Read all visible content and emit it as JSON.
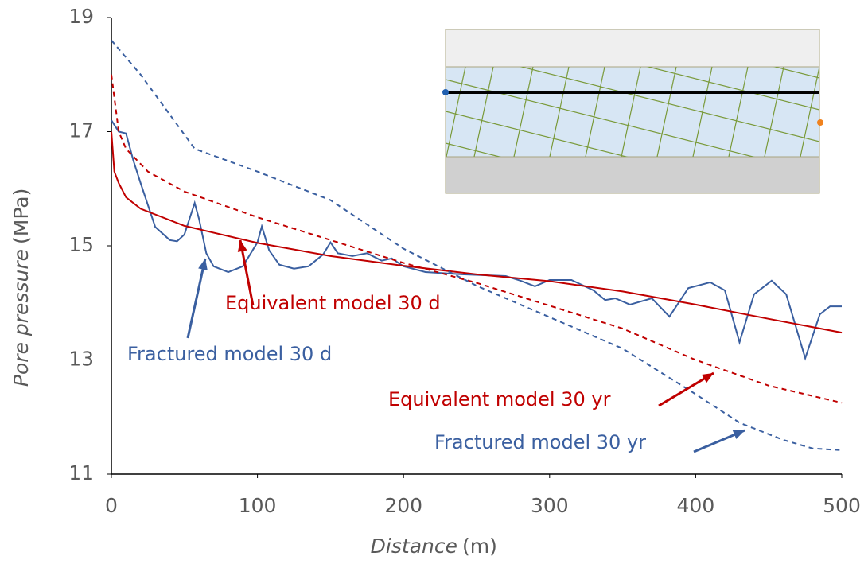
{
  "chart_data": {
    "type": "line",
    "xlabel": "Distance",
    "xlabel_unit": "(m)",
    "ylabel": "Pore pressure",
    "ylabel_unit": "(MPa)",
    "xlim": [
      0,
      500
    ],
    "xticks": [
      0,
      100,
      200,
      300,
      400,
      500
    ],
    "ylim": [
      11,
      19
    ],
    "yticks": [
      11,
      13,
      15,
      17,
      19
    ],
    "grid": false,
    "series": [
      {
        "name": "Fractured model 30 d",
        "color": "#3a5fa0",
        "dashed": false,
        "x": [
          0,
          5,
          10,
          15,
          20,
          30,
          40,
          45,
          50,
          57,
          60,
          65,
          70,
          80,
          90,
          100,
          103,
          108,
          115,
          125,
          135,
          145,
          150,
          155,
          165,
          175,
          185,
          192,
          200,
          215,
          240,
          270,
          280,
          290,
          300,
          315,
          330,
          338,
          345,
          355,
          370,
          382,
          395,
          410,
          420,
          430,
          440,
          452,
          462,
          475,
          485,
          492,
          500
        ],
        "values": [
          17.2,
          17.0,
          16.97,
          16.5,
          16.1,
          15.33,
          15.1,
          15.08,
          15.2,
          15.75,
          15.47,
          14.87,
          14.64,
          14.54,
          14.64,
          15.06,
          15.34,
          14.92,
          14.67,
          14.6,
          14.64,
          14.85,
          15.06,
          14.87,
          14.82,
          14.87,
          14.74,
          14.78,
          14.64,
          14.54,
          14.5,
          14.47,
          14.39,
          14.29,
          14.4,
          14.4,
          14.22,
          14.05,
          14.08,
          13.97,
          14.08,
          13.76,
          14.26,
          14.36,
          14.22,
          13.31,
          14.15,
          14.39,
          14.15,
          13.03,
          13.8,
          13.94,
          13.94
        ]
      },
      {
        "name": "Equivalent model 30 d",
        "color": "#c00000",
        "dashed": false,
        "x": [
          0,
          2,
          5,
          10,
          20,
          50,
          100,
          150,
          200,
          250,
          300,
          350,
          400,
          450,
          500
        ],
        "values": [
          17.0,
          16.3,
          16.1,
          15.85,
          15.65,
          15.35,
          15.05,
          14.82,
          14.65,
          14.5,
          14.38,
          14.2,
          13.97,
          13.72,
          13.48
        ]
      },
      {
        "name": "Equivalent model 30 yr",
        "color": "#c00000",
        "dashed": true,
        "x": [
          0,
          5,
          10,
          25,
          50,
          100,
          150,
          200,
          250,
          300,
          350,
          400,
          450,
          500
        ],
        "values": [
          18.0,
          17.0,
          16.7,
          16.3,
          15.95,
          15.5,
          15.1,
          14.7,
          14.35,
          13.95,
          13.55,
          13.0,
          12.55,
          12.25
        ]
      },
      {
        "name": "Fractured model 30 yr",
        "color": "#3a5fa0",
        "dashed": true,
        "x": [
          0,
          20,
          40,
          57,
          100,
          150,
          200,
          250,
          300,
          350,
          400,
          430,
          460,
          480,
          500
        ],
        "values": [
          18.6,
          18.0,
          17.3,
          16.7,
          16.3,
          15.8,
          14.95,
          14.3,
          13.75,
          13.2,
          12.4,
          11.9,
          11.6,
          11.45,
          11.42
        ]
      }
    ]
  }
}
